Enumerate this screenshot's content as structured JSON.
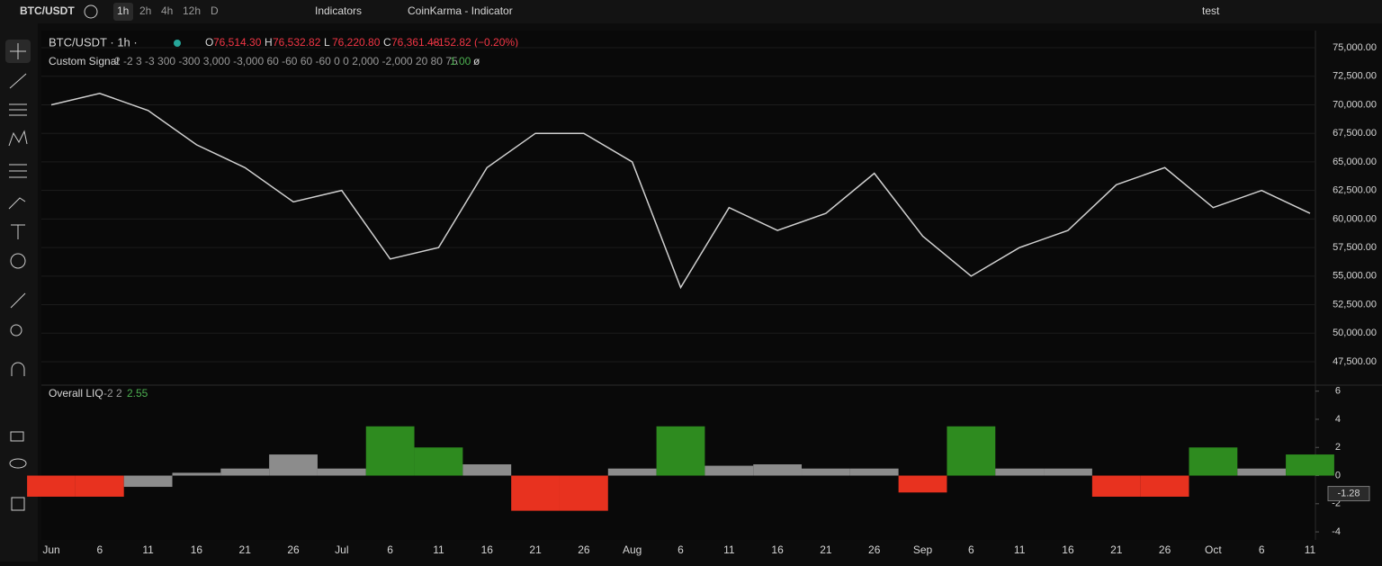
{
  "toolbar": {
    "symbol": "BTC/USDT",
    "intervals": [
      "1h",
      "2h",
      "4h",
      "12h",
      "D"
    ],
    "indicators": "Indicators",
    "script": "CoinKarma - Indicator",
    "layout": "test"
  },
  "legend": {
    "title": "BTC/USDT · 1h ·",
    "ohlc": [
      {
        "key": "O",
        "value": "76,514.30"
      },
      {
        "key": "H",
        "value": "76,532.82"
      },
      {
        "key": "L",
        "value": "76,220.80"
      },
      {
        "key": "C",
        "value": "76,361.48"
      }
    ],
    "change": "−152.82 (−0.20%)"
  },
  "studies": [
    {
      "name": "Custom Signal",
      "params": "2 -2 3 -3 300 -300 3,000 -3,000 60 -60 60 -60 0 0 2,000 -2,000 20 80 75",
      "value": "1.00",
      "extra": "ø"
    },
    {
      "name": "Overall LIQ",
      "params": "-2 2",
      "value": "2.55"
    }
  ],
  "chart_data": [
    {
      "type": "line",
      "categories": [
        "Jun",
        "6",
        "11",
        "16",
        "21",
        "26",
        "Jul",
        "6",
        "11",
        "16",
        "21",
        "26",
        "Aug",
        "6",
        "11",
        "16",
        "21",
        "26",
        "Sep",
        "6",
        "11",
        "16",
        "21",
        "26",
        "Oct",
        "6",
        "11"
      ],
      "series": [
        {
          "name": "BTC/USDT",
          "color": "#d0d0d0",
          "values": [
            70000,
            71000,
            69500,
            66500,
            64500,
            61500,
            62500,
            56500,
            57500,
            64500,
            67500,
            67500,
            65000,
            54000,
            61000,
            59000,
            60500,
            64000,
            58500,
            55000,
            57500,
            59000,
            63000,
            64500,
            61000,
            62500,
            60500
          ]
        }
      ],
      "ylim": [
        45690,
        76340
      ],
      "yticks": [
        {
          "value": 47500,
          "label": "47,500.00"
        },
        {
          "value": 50000,
          "label": "50,000.00"
        },
        {
          "value": 52500,
          "label": "52,500.00"
        },
        {
          "value": 55000,
          "label": "55,000.00"
        },
        {
          "value": 57500,
          "label": "57,500.00"
        },
        {
          "value": 60000,
          "label": "60,000.00"
        },
        {
          "value": 62500,
          "label": "62,500.00"
        },
        {
          "value": 65000,
          "label": "65,000.00"
        },
        {
          "value": 67500,
          "label": "67,500.00"
        },
        {
          "value": 70000,
          "label": "70,000.00"
        },
        {
          "value": 72500,
          "label": "72,500.00"
        },
        {
          "value": 75000,
          "label": "75,000.00"
        }
      ]
    },
    {
      "type": "bar",
      "values": [
        -1.5,
        -1.5,
        -0.8,
        0.2,
        0.5,
        1.5,
        0.5,
        3.5,
        2,
        0.8,
        -2.5,
        -2.5,
        0.5,
        3.5,
        0.7,
        0.8,
        0.5,
        0.5,
        -1.2,
        3.5,
        0.5,
        0.5,
        -1.5,
        -1.5,
        2,
        0.5,
        1.5
      ],
      "colors": [
        "#e8321f",
        "#e8321f",
        "#8c8c8c",
        "#8c8c8c",
        "#8c8c8c",
        "#8c8c8c",
        "#8c8c8c",
        "#2e8b1f",
        "#2e8b1f",
        "#8c8c8c",
        "#e8321f",
        "#e8321f",
        "#8c8c8c",
        "#2e8b1f",
        "#8c8c8c",
        "#8c8c8c",
        "#8c8c8c",
        "#8c8c8c",
        "#e8321f",
        "#2e8b1f",
        "#8c8c8c",
        "#8c8c8c",
        "#e8321f",
        "#e8321f",
        "#2e8b1f",
        "#8c8c8c",
        "#2e8b1f"
      ],
      "ylim": [
        -4.57,
        6.3
      ],
      "yticks": [
        -4,
        -2,
        0,
        2,
        4,
        6
      ],
      "last_value": -1.28
    }
  ]
}
